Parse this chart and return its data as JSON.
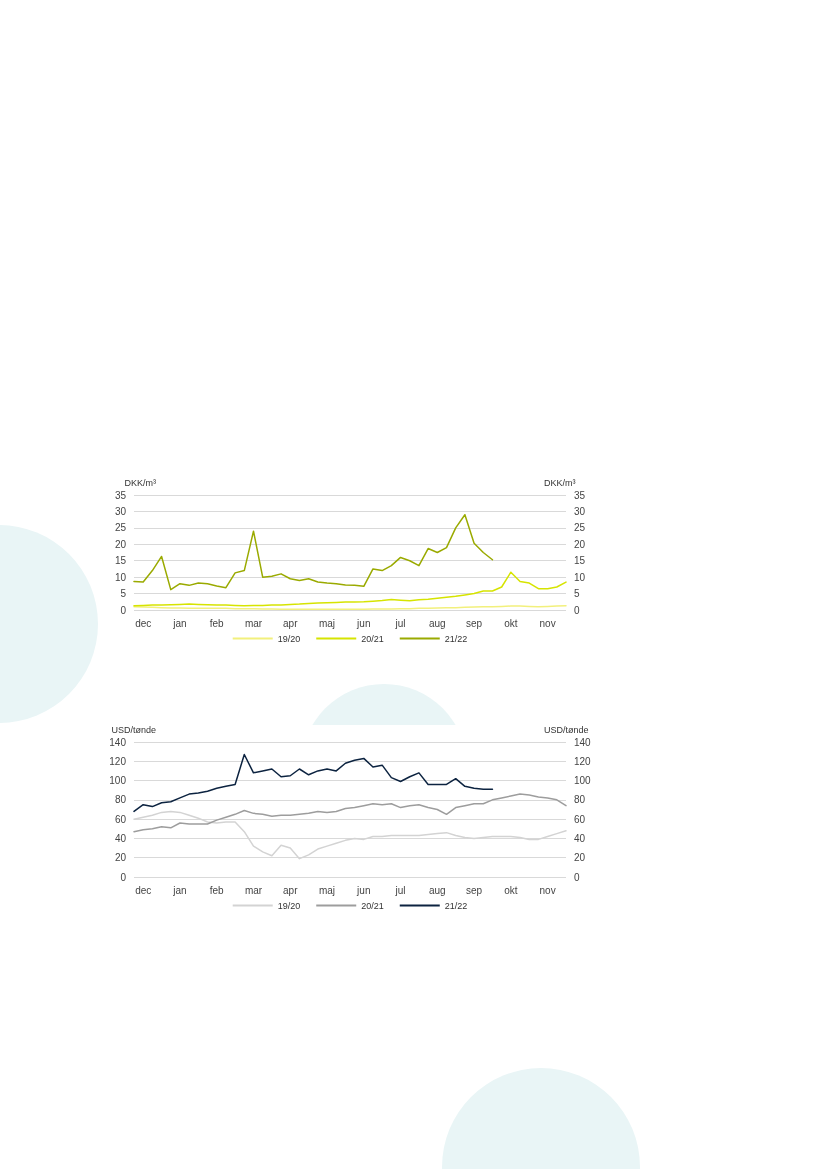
{
  "chart_data": [
    {
      "type": "line",
      "ylabel": "DKK/m³",
      "y2label": "DKK/m³",
      "categories": [
        null,
        "dec",
        null,
        null,
        null,
        "jan",
        null,
        null,
        null,
        "feb",
        null,
        null,
        null,
        "mar",
        null,
        null,
        null,
        "apr",
        null,
        null,
        null,
        "maj",
        null,
        null,
        null,
        "jun",
        null,
        null,
        null,
        "jul",
        null,
        null,
        null,
        "aug",
        null,
        null,
        null,
        "sep",
        null,
        null,
        null,
        "okt",
        null,
        null,
        null,
        "nov",
        null,
        null
      ],
      "ylim": [
        0,
        35
      ],
      "yticks": [
        0,
        5,
        10,
        15,
        20,
        25,
        30,
        35
      ],
      "y2lim": [
        0,
        35
      ],
      "y2ticks": [
        0,
        5,
        10,
        15,
        20,
        25,
        30,
        35
      ],
      "grid": "y",
      "legend": "bottom",
      "marker": "none",
      "line_style": "solid",
      "series": [
        {
          "name": "19/20",
          "color": "#f2f07c",
          "values": [
            1,
            0.9,
            0.8,
            0.7,
            0.6,
            0.6,
            0.5,
            0.5,
            0.5,
            0.5,
            0.5,
            0.4,
            0.4,
            0.4,
            0.3,
            0.3,
            0.2,
            0.2,
            0.2,
            0.2,
            0.2,
            0.2,
            0.2,
            0.2,
            0.2,
            0.2,
            0.3,
            0.3,
            0.3,
            0.4,
            0.4,
            0.5,
            0.5,
            0.6,
            0.7,
            0.7,
            0.8,
            0.9,
            1,
            1,
            1.1,
            1.2,
            1.2,
            1.1,
            1,
            1.1,
            1.2,
            1.3
          ]
        },
        {
          "name": "20/21",
          "color": "#d6e400",
          "values": [
            1.3,
            1.4,
            1.5,
            1.5,
            1.6,
            1.7,
            1.8,
            1.7,
            1.6,
            1.5,
            1.5,
            1.4,
            1.3,
            1.4,
            1.4,
            1.5,
            1.5,
            1.7,
            1.8,
            2,
            2.1,
            2.2,
            2.3,
            2.4,
            2.4,
            2.5,
            2.7,
            2.9,
            3.2,
            3,
            2.8,
            3.1,
            3.3,
            3.6,
            3.9,
            4.2,
            4.6,
            5,
            5.8,
            5.8,
            7,
            11.5,
            8.7,
            8.2,
            6.5,
            6.5,
            7,
            8.5
          ]
        },
        {
          "name": "21/22",
          "color": "#9aaa00",
          "values": [
            8.7,
            8.5,
            12,
            16.3,
            6.2,
            8,
            7.5,
            8.2,
            8,
            7.3,
            6.8,
            11.3,
            12,
            24,
            10,
            10.3,
            11,
            9.5,
            9,
            9.5,
            8.5,
            8.2,
            8,
            7.6,
            7.5,
            7.2,
            12.5,
            12,
            13.5,
            16,
            15,
            13.5,
            18.7,
            17.5,
            19,
            25,
            29,
            20.3,
            17.5,
            15.3,
            null,
            null,
            null,
            null,
            null,
            null,
            null,
            null
          ]
        }
      ]
    },
    {
      "type": "line",
      "ylabel": "USD/tønde",
      "y2label": "USD/tønde",
      "categories": [
        null,
        "dec",
        null,
        null,
        null,
        "jan",
        null,
        null,
        null,
        "feb",
        null,
        null,
        null,
        "mar",
        null,
        null,
        null,
        "apr",
        null,
        null,
        null,
        "maj",
        null,
        null,
        null,
        "jun",
        null,
        null,
        null,
        "jul",
        null,
        null,
        null,
        "aug",
        null,
        null,
        null,
        "sep",
        null,
        null,
        null,
        "okt",
        null,
        null,
        null,
        "nov",
        null,
        null
      ],
      "ylim": [
        0,
        140
      ],
      "yticks": [
        0,
        20,
        40,
        60,
        80,
        100,
        120,
        140
      ],
      "y2lim": [
        0,
        140
      ],
      "y2ticks": [
        0,
        20,
        40,
        60,
        80,
        100,
        120,
        140
      ],
      "grid": "y",
      "legend": "bottom",
      "marker": "none",
      "line_style": "solid",
      "series": [
        {
          "name": "19/20",
          "color": "#d3d3d3",
          "values": [
            60,
            62,
            64,
            67,
            68,
            67,
            64,
            61,
            57,
            56,
            57,
            57,
            47,
            32,
            26,
            22,
            33,
            30,
            19,
            23,
            29,
            32,
            35,
            38,
            40,
            39,
            42,
            42,
            43,
            43,
            43,
            43,
            44,
            45,
            46,
            43,
            41,
            40,
            41,
            42,
            42,
            42,
            41,
            39,
            39,
            42,
            45,
            48
          ]
        },
        {
          "name": "20/21",
          "color": "#9d9d9d",
          "values": [
            47,
            49,
            50,
            52,
            51,
            56,
            55,
            55,
            55,
            59,
            62,
            65,
            69,
            66,
            65,
            63,
            64,
            64,
            65,
            66,
            68,
            67,
            68,
            71,
            72,
            74,
            76,
            75,
            76,
            72,
            74,
            75,
            72,
            70,
            65,
            72,
            74,
            76,
            76,
            80,
            82,
            84,
            86,
            85,
            83,
            82,
            80,
            74
          ]
        },
        {
          "name": "21/22",
          "color": "#0c2340",
          "values": [
            68,
            75,
            73,
            77,
            78,
            82,
            86,
            87,
            89,
            92,
            94,
            96,
            127,
            108,
            110,
            112,
            104,
            105,
            112,
            106,
            110,
            112,
            110,
            118,
            121,
            123,
            114,
            116,
            103,
            99,
            104,
            108,
            96,
            96,
            96,
            102,
            94,
            92,
            91,
            91,
            null,
            null,
            null,
            null,
            null,
            null,
            null,
            null
          ]
        }
      ]
    }
  ]
}
